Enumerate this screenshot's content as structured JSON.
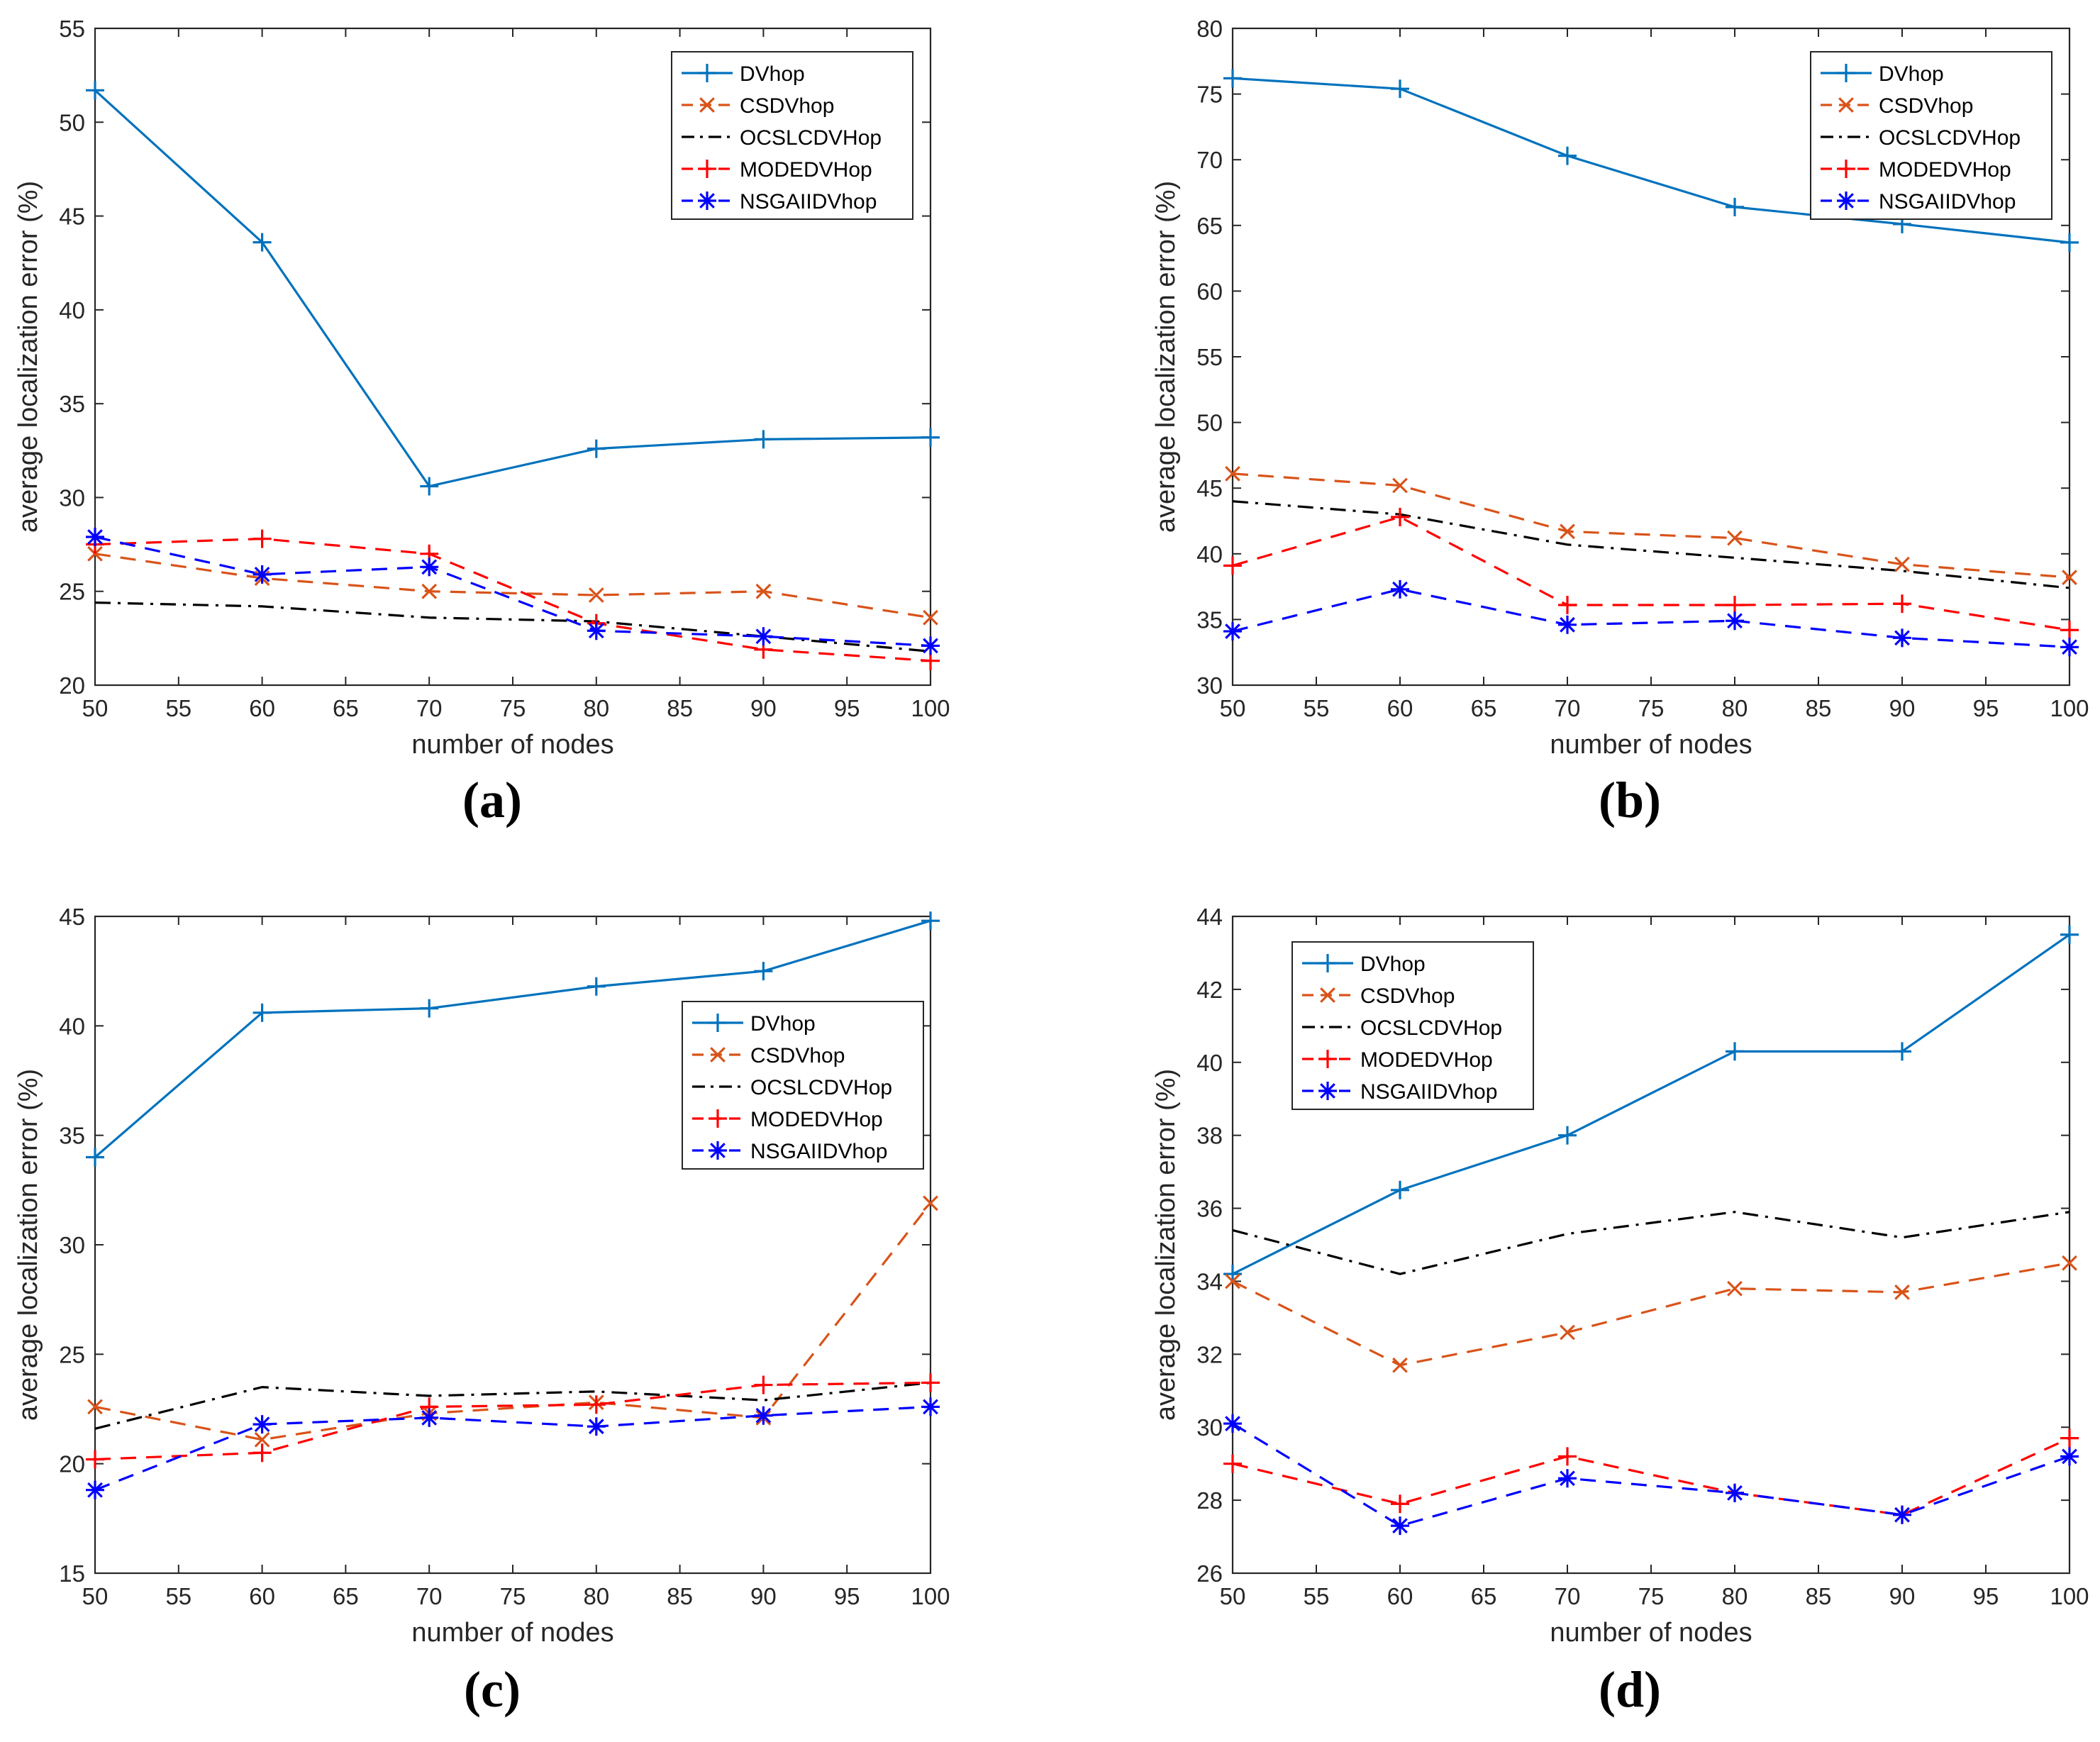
{
  "colors": {
    "DVhop": "#0072BD",
    "CSDVhop": "#D95319",
    "OCSLCDVHop": "#000000",
    "MODEDVHop": "#FF0000",
    "NSGAIIDVhop": "#0000FF"
  },
  "chart_data": [
    {
      "type": "line",
      "panel_label": "(a)",
      "xlabel": "number of nodes",
      "ylabel": "average localization error (%)",
      "xlim": [
        50,
        100
      ],
      "ylim": [
        20,
        55
      ],
      "xticks": [
        50,
        55,
        60,
        65,
        70,
        75,
        80,
        85,
        90,
        95,
        100
      ],
      "yticks": [
        20,
        25,
        30,
        35,
        40,
        45,
        50,
        55
      ],
      "legend_position": "top-right",
      "x": [
        50,
        60,
        70,
        80,
        90,
        100
      ],
      "series": [
        {
          "name": "DVhop",
          "style": "solid",
          "marker": "plus",
          "values": [
            51.7,
            43.6,
            30.6,
            32.6,
            33.1,
            33.2
          ]
        },
        {
          "name": "CSDVhop",
          "style": "dashed",
          "marker": "x",
          "values": [
            27.0,
            25.7,
            25.0,
            24.8,
            25.0,
            23.6
          ]
        },
        {
          "name": "OCSLCDVHop",
          "style": "dashdot",
          "marker": "none",
          "values": [
            24.4,
            24.2,
            23.6,
            23.4,
            22.6,
            21.8
          ]
        },
        {
          "name": "MODEDVHop",
          "style": "dashed",
          "marker": "plus",
          "values": [
            27.5,
            27.8,
            27.0,
            23.3,
            21.9,
            21.3
          ]
        },
        {
          "name": "NSGAIIDVhop",
          "style": "dashed",
          "marker": "star",
          "values": [
            27.9,
            25.9,
            26.3,
            22.9,
            22.6,
            22.1
          ]
        }
      ]
    },
    {
      "type": "line",
      "panel_label": "(b)",
      "xlabel": "number of nodes",
      "ylabel": "average localization error (%)",
      "xlim": [
        50,
        100
      ],
      "ylim": [
        30,
        80
      ],
      "xticks": [
        50,
        55,
        60,
        65,
        70,
        75,
        80,
        85,
        90,
        95,
        100
      ],
      "yticks": [
        30,
        35,
        40,
        45,
        50,
        55,
        60,
        65,
        70,
        75,
        80
      ],
      "legend_position": "top-right",
      "x": [
        50,
        60,
        70,
        80,
        90,
        100
      ],
      "series": [
        {
          "name": "DVhop",
          "style": "solid",
          "marker": "plus",
          "values": [
            76.2,
            75.4,
            70.3,
            66.4,
            65.1,
            63.7
          ]
        },
        {
          "name": "CSDVhop",
          "style": "dashed",
          "marker": "x",
          "values": [
            46.1,
            45.2,
            41.7,
            41.2,
            39.2,
            38.2
          ]
        },
        {
          "name": "OCSLCDVHop",
          "style": "dashdot",
          "marker": "none",
          "values": [
            44.0,
            43.0,
            40.7,
            39.7,
            38.7,
            37.4
          ]
        },
        {
          "name": "MODEDVHop",
          "style": "dashed",
          "marker": "plus",
          "values": [
            39.1,
            42.8,
            36.1,
            36.1,
            36.2,
            34.2
          ]
        },
        {
          "name": "NSGAIIDVhop",
          "style": "dashed",
          "marker": "star",
          "values": [
            34.1,
            37.3,
            34.6,
            34.9,
            33.6,
            32.9
          ]
        }
      ]
    },
    {
      "type": "line",
      "panel_label": "(c)",
      "xlabel": "number of nodes",
      "ylabel": "average localization error (%)",
      "xlim": [
        50,
        100
      ],
      "ylim": [
        15,
        45
      ],
      "xticks": [
        50,
        55,
        60,
        65,
        70,
        75,
        80,
        85,
        90,
        95,
        100
      ],
      "yticks": [
        15,
        20,
        25,
        30,
        35,
        40,
        45
      ],
      "legend_position": "center-right",
      "x": [
        50,
        60,
        70,
        80,
        90,
        100
      ],
      "series": [
        {
          "name": "DVhop",
          "style": "solid",
          "marker": "plus",
          "values": [
            34.0,
            40.6,
            40.8,
            41.8,
            42.5,
            44.8
          ]
        },
        {
          "name": "CSDVhop",
          "style": "dashed",
          "marker": "x",
          "values": [
            22.6,
            21.1,
            22.3,
            22.8,
            22.1,
            31.9
          ]
        },
        {
          "name": "OCSLCDVHop",
          "style": "dashdot",
          "marker": "none",
          "values": [
            21.6,
            23.5,
            23.1,
            23.3,
            22.9,
            23.7
          ]
        },
        {
          "name": "MODEDVHop",
          "style": "dashed",
          "marker": "plus",
          "values": [
            20.2,
            20.5,
            22.6,
            22.7,
            23.6,
            23.7
          ]
        },
        {
          "name": "NSGAIIDVhop",
          "style": "dashed",
          "marker": "star",
          "values": [
            18.8,
            21.8,
            22.1,
            21.7,
            22.2,
            22.6
          ]
        }
      ]
    },
    {
      "type": "line",
      "panel_label": "(d)",
      "xlabel": "number of nodes",
      "ylabel": "average localization error (%)",
      "xlim": [
        50,
        100
      ],
      "ylim": [
        26,
        44
      ],
      "xticks": [
        50,
        55,
        60,
        65,
        70,
        75,
        80,
        85,
        90,
        95,
        100
      ],
      "yticks": [
        26,
        28,
        30,
        32,
        34,
        36,
        38,
        40,
        42,
        44
      ],
      "legend_position": "top-left",
      "x": [
        50,
        60,
        70,
        80,
        90,
        100
      ],
      "series": [
        {
          "name": "DVhop",
          "style": "solid",
          "marker": "plus",
          "values": [
            34.2,
            36.5,
            38.0,
            40.3,
            40.3,
            43.5
          ]
        },
        {
          "name": "CSDVhop",
          "style": "dashed",
          "marker": "x",
          "values": [
            34.0,
            31.7,
            32.6,
            33.8,
            33.7,
            34.5
          ]
        },
        {
          "name": "OCSLCDVHop",
          "style": "dashdot",
          "marker": "none",
          "values": [
            35.4,
            34.2,
            35.3,
            35.9,
            35.2,
            35.9
          ]
        },
        {
          "name": "MODEDVHop",
          "style": "dashed",
          "marker": "plus",
          "values": [
            29.0,
            27.9,
            29.2,
            28.2,
            27.6,
            29.7
          ]
        },
        {
          "name": "NSGAIIDVhop",
          "style": "dashed",
          "marker": "star",
          "values": [
            30.1,
            27.3,
            28.6,
            28.2,
            27.6,
            29.2
          ]
        }
      ]
    }
  ]
}
